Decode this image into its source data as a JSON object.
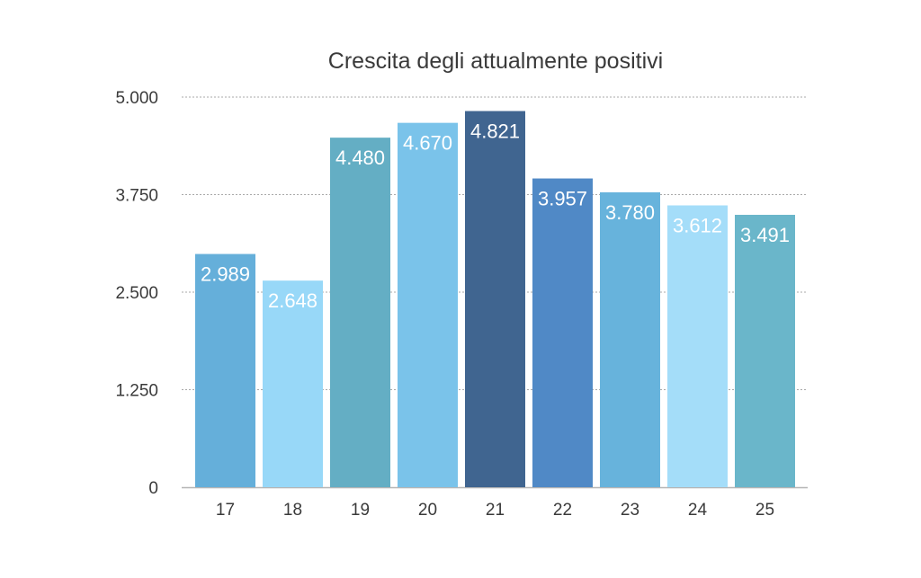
{
  "chart_data": {
    "type": "bar",
    "title": "Crescita degli attualmente positivi",
    "xlabel": "",
    "ylabel": "",
    "categories": [
      "17",
      "18",
      "19",
      "20",
      "21",
      "22",
      "23",
      "24",
      "25"
    ],
    "values": [
      2989,
      2648,
      4480,
      4670,
      4821,
      3957,
      3780,
      3612,
      3491
    ],
    "value_labels": [
      "2.989",
      "2.648",
      "4.480",
      "4.670",
      "4.821",
      "3.957",
      "3.780",
      "3.612",
      "3.491"
    ],
    "ylim": [
      0,
      5000
    ],
    "yticks": [
      0,
      1250,
      2500,
      3750,
      5000
    ],
    "ytick_labels": [
      "0",
      "1.250",
      "2.500",
      "3.750",
      "5.000"
    ],
    "grid": true,
    "legend": "none",
    "colors": [
      "#65AFDA",
      "#98D8F8",
      "#64AEC4",
      "#7AC3EA",
      "#406590",
      "#5089C6",
      "#67B3DC",
      "#A4DDF9",
      "#6AB6CA"
    ]
  }
}
